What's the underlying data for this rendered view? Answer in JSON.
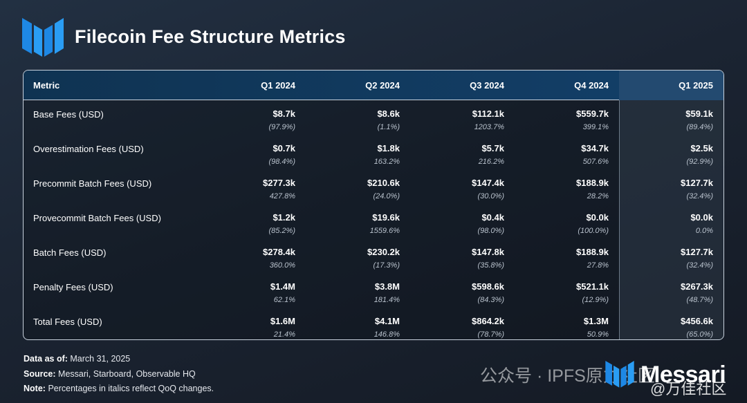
{
  "title": "Filecoin Fee Structure Metrics",
  "colors": {
    "header_bg": "#13406a",
    "accent_blue": "#1e88e5",
    "border": "#c9d3de"
  },
  "chart_data": {
    "type": "table",
    "title": "Filecoin Fee Structure Metrics",
    "columns": [
      "Metric",
      "Q1 2024",
      "Q2 2024",
      "Q3 2024",
      "Q4 2024",
      "Q1 2025"
    ],
    "rows": [
      {
        "metric": "Base Fees (USD)",
        "values": [
          "$8.7k",
          "$8.6k",
          "$112.1k",
          "$559.7k",
          "$59.1k"
        ],
        "changes": [
          "(97.9%)",
          "(1.1%)",
          "1203.7%",
          "399.1%",
          "(89.4%)"
        ]
      },
      {
        "metric": "Overestimation Fees (USD)",
        "values": [
          "$0.7k",
          "$1.8k",
          "$5.7k",
          "$34.7k",
          "$2.5k"
        ],
        "changes": [
          "(98.4%)",
          "163.2%",
          "216.2%",
          "507.6%",
          "(92.9%)"
        ]
      },
      {
        "metric": "Precommit Batch Fees (USD)",
        "values": [
          "$277.3k",
          "$210.6k",
          "$147.4k",
          "$188.9k",
          "$127.7k"
        ],
        "changes": [
          "427.8%",
          "(24.0%)",
          "(30.0%)",
          "28.2%",
          "(32.4%)"
        ]
      },
      {
        "metric": "Provecommit Batch Fees (USD)",
        "values": [
          "$1.2k",
          "$19.6k",
          "$0.4k",
          "$0.0k",
          "$0.0k"
        ],
        "changes": [
          "(85.2%)",
          "1559.6%",
          "(98.0%)",
          "(100.0%)",
          "0.0%"
        ]
      },
      {
        "metric": "Batch Fees (USD)",
        "values": [
          "$278.4k",
          "$230.2k",
          "$147.8k",
          "$188.9k",
          "$127.7k"
        ],
        "changes": [
          "360.0%",
          "(17.3%)",
          "(35.8%)",
          "27.8%",
          "(32.4%)"
        ]
      },
      {
        "metric": "Penalty Fees (USD)",
        "values": [
          "$1.4M",
          "$3.8M",
          "$598.6k",
          "$521.1k",
          "$267.3k"
        ],
        "changes": [
          "62.1%",
          "181.4%",
          "(84.3%)",
          "(12.9%)",
          "(48.7%)"
        ]
      },
      {
        "metric": "Total Fees (USD)",
        "values": [
          "$1.6M",
          "$4.1M",
          "$864.2k",
          "$1.3M",
          "$456.6k"
        ],
        "changes": [
          "21.4%",
          "146.8%",
          "(78.7%)",
          "50.9%",
          "(65.0%)"
        ]
      }
    ]
  },
  "footer": {
    "data_as_of_label": "Data as of:",
    "data_as_of_value": "March 31, 2025",
    "source_label": "Source:",
    "source_value": "Messari, Starboard, Observable HQ",
    "note_label": "Note:",
    "note_value": "Percentages in italics reflect QoQ changes."
  },
  "brand": {
    "name": "Messari",
    "logo_icon": "messari-logo-icon"
  },
  "watermark": {
    "text": "公众号 · IPFS原力社区",
    "text2": "@万佳社区"
  }
}
